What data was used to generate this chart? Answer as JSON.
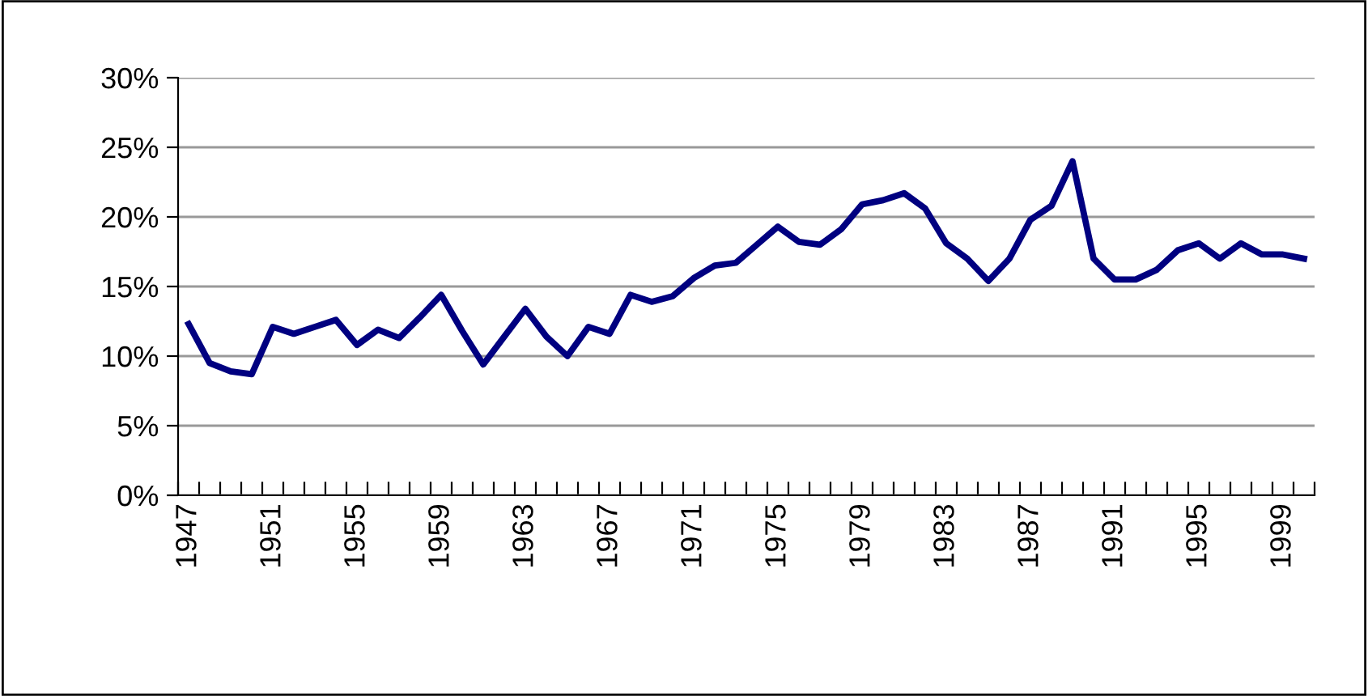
{
  "chart_data": {
    "type": "line",
    "categories": [
      "1947",
      null,
      null,
      null,
      "1951",
      null,
      null,
      null,
      "1955",
      null,
      null,
      null,
      "1959",
      null,
      null,
      null,
      "1963",
      null,
      null,
      null,
      "1967",
      null,
      null,
      null,
      "1971",
      null,
      null,
      null,
      "1975",
      null,
      null,
      null,
      "1979",
      null,
      null,
      null,
      "1983",
      null,
      null,
      null,
      "1987",
      null,
      null,
      null,
      "1991",
      null,
      null,
      null,
      "1995",
      null,
      null,
      null,
      "1999",
      null
    ],
    "series": [
      {
        "color": "#000080",
        "values": [
          12.3,
          9.5,
          8.9,
          8.7,
          12.1,
          11.6,
          12.1,
          12.6,
          10.8,
          11.9,
          11.3,
          12.8,
          14.4,
          11.8,
          9.4,
          11.4,
          13.4,
          11.4,
          10.0,
          12.1,
          11.6,
          14.4,
          13.9,
          14.3,
          15.6,
          16.5,
          16.7,
          18.0,
          19.3,
          18.2,
          18.0,
          19.1,
          20.9,
          21.2,
          21.7,
          20.6,
          18.1,
          17.0,
          15.4,
          17.0,
          19.8,
          20.8,
          24.0,
          17.0,
          15.5,
          15.5,
          16.2,
          17.6,
          18.1,
          17.0,
          18.1,
          17.3,
          17.3,
          17.0
        ]
      }
    ],
    "ylim": [
      0,
      30
    ],
    "yticks": [
      {
        "value": 0,
        "label": "0%"
      },
      {
        "value": 5,
        "label": "5%"
      },
      {
        "value": 10,
        "label": "10%"
      },
      {
        "value": 15,
        "label": "15%"
      },
      {
        "value": 20,
        "label": "20%"
      },
      {
        "value": 25,
        "label": "25%"
      },
      {
        "value": 30,
        "label": "30%"
      }
    ],
    "grid": "y",
    "legend": false,
    "marker": "none",
    "line_style": "solid"
  }
}
